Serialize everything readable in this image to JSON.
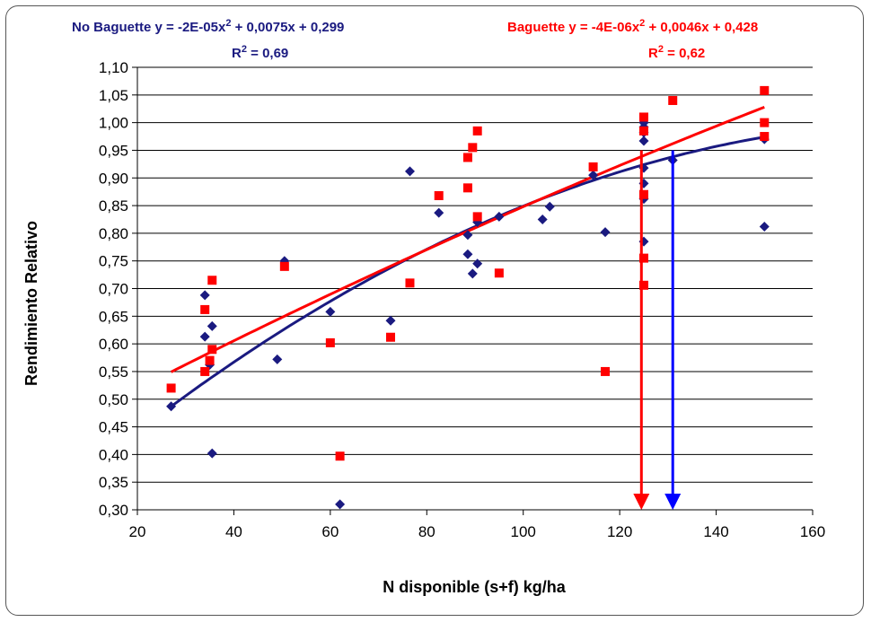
{
  "chart_data": {
    "type": "scatter",
    "xlabel": "N disponible (s+f) kg/ha",
    "ylabel": "Rendimiento Relativo",
    "xlim": [
      20,
      160
    ],
    "ylim": [
      0.3,
      1.1
    ],
    "x_ticks": [
      "20",
      "40",
      "60",
      "80",
      "100",
      "120",
      "140",
      "160"
    ],
    "y_ticks": [
      "0,30",
      "0,35",
      "0,40",
      "0,45",
      "0,50",
      "0,55",
      "0,60",
      "0,65",
      "0,70",
      "0,75",
      "0,80",
      "0,85",
      "0,90",
      "0,95",
      "1,00",
      "1,05",
      "1,10"
    ],
    "grid": "horizontal",
    "series": [
      {
        "name": "No Baguette",
        "color": "#1a1a80",
        "marker": "diamond",
        "equation": "y = -2E-05x",
        "equation_rest": " + 0,0075x + 0,299",
        "r2_value": " = 0,69",
        "trend": {
          "a": -2e-05,
          "b": 0.0075,
          "c": 0.299
        },
        "points": [
          [
            27,
            0.487
          ],
          [
            34,
            0.688
          ],
          [
            34,
            0.613
          ],
          [
            35,
            0.562
          ],
          [
            35.5,
            0.632
          ],
          [
            35.5,
            0.402
          ],
          [
            49,
            0.572
          ],
          [
            50.5,
            0.75
          ],
          [
            60,
            0.658
          ],
          [
            62,
            0.31
          ],
          [
            72.5,
            0.642
          ],
          [
            76.5,
            0.912
          ],
          [
            82.5,
            0.837
          ],
          [
            88.5,
            0.762
          ],
          [
            88.5,
            0.797
          ],
          [
            89.5,
            0.727
          ],
          [
            90.5,
            0.745
          ],
          [
            90.5,
            0.82
          ],
          [
            95,
            0.83
          ],
          [
            104,
            0.825
          ],
          [
            105.5,
            0.848
          ],
          [
            114.5,
            0.905
          ],
          [
            117,
            0.802
          ],
          [
            125,
            1.0
          ],
          [
            125,
            0.992
          ],
          [
            125,
            0.982
          ],
          [
            125,
            0.967
          ],
          [
            125,
            0.918
          ],
          [
            125,
            0.89
          ],
          [
            125,
            0.862
          ],
          [
            125,
            0.785
          ],
          [
            131,
            0.932
          ],
          [
            150,
            0.97
          ],
          [
            150,
            0.812
          ]
        ]
      },
      {
        "name": "Baguette",
        "color": "#ff0000",
        "marker": "square",
        "equation": "y = -4E-06x",
        "equation_rest": " + 0,0046x + 0,428",
        "r2_value": " = 0,62",
        "trend": {
          "a": -4e-06,
          "b": 0.0046,
          "c": 0.428
        },
        "points": [
          [
            27,
            0.52
          ],
          [
            34,
            0.662
          ],
          [
            34,
            0.55
          ],
          [
            35,
            0.57
          ],
          [
            35.5,
            0.715
          ],
          [
            35.5,
            0.59
          ],
          [
            50.5,
            0.74
          ],
          [
            60,
            0.602
          ],
          [
            62,
            0.397
          ],
          [
            72.5,
            0.612
          ],
          [
            76.5,
            0.71
          ],
          [
            82.5,
            0.868
          ],
          [
            88.5,
            0.937
          ],
          [
            88.5,
            0.882
          ],
          [
            89.5,
            0.955
          ],
          [
            90.5,
            0.985
          ],
          [
            90.5,
            0.83
          ],
          [
            95,
            0.728
          ],
          [
            114.5,
            0.92
          ],
          [
            117,
            0.55
          ],
          [
            125,
            1.01
          ],
          [
            125,
            0.985
          ],
          [
            125,
            0.87
          ],
          [
            125,
            0.755
          ],
          [
            125,
            0.706
          ],
          [
            131,
            1.04
          ],
          [
            150,
            1.058
          ],
          [
            150,
            1.0
          ],
          [
            150,
            0.975
          ]
        ]
      }
    ],
    "annotations": [
      {
        "type": "vertical-arrow",
        "x": 124.5,
        "from_y": 0.95,
        "to_y": 0.3,
        "color": "#ff0000"
      },
      {
        "type": "vertical-arrow",
        "x": 131,
        "from_y": 0.95,
        "to_y": 0.3,
        "color": "#0000ff"
      }
    ]
  }
}
